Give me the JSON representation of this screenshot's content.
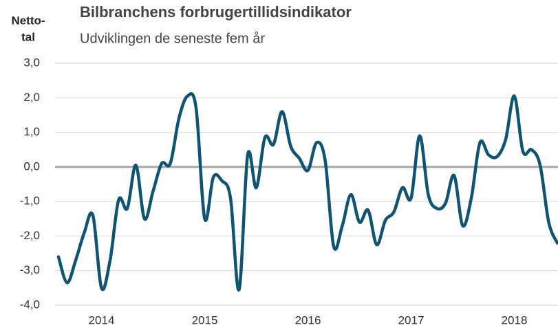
{
  "chart_data": {
    "type": "line",
    "title": "Bilbranchens forbrugertillidsindikator",
    "subtitle": "Udviklingen de seneste fem år",
    "ylabel": [
      "Netto-",
      "tal"
    ],
    "categories": [
      null,
      null,
      null,
      null,
      null,
      "2014",
      null,
      null,
      null,
      null,
      null,
      null,
      null,
      null,
      null,
      null,
      null,
      "2015",
      null,
      null,
      null,
      null,
      null,
      null,
      null,
      null,
      null,
      null,
      null,
      "2016",
      null,
      null,
      null,
      null,
      null,
      null,
      null,
      null,
      null,
      null,
      null,
      "2017",
      null,
      null,
      null,
      null,
      null,
      null,
      null,
      null,
      null,
      null,
      null,
      "2018",
      null,
      null,
      null,
      null,
      null
    ],
    "series": [
      {
        "color": "#0f5573",
        "values": [
          -2.6,
          -3.35,
          -2.7,
          -1.9,
          -1.4,
          -3.5,
          -2.7,
          -0.95,
          -1.2,
          0.05,
          -1.5,
          -0.7,
          0.1,
          0.1,
          1.4,
          2.05,
          1.7,
          -1.5,
          -0.3,
          -0.4,
          -0.9,
          -3.55,
          0.35,
          -0.6,
          0.85,
          0.65,
          1.6,
          0.6,
          0.25,
          -0.1,
          0.7,
          0.2,
          -2.3,
          -1.7,
          -0.8,
          -1.6,
          -1.25,
          -2.25,
          -1.55,
          -1.3,
          -0.6,
          -0.9,
          0.9,
          -0.8,
          -1.2,
          -1.05,
          -0.25,
          -1.7,
          -0.9,
          0.7,
          0.35,
          0.3,
          0.8,
          2.05,
          0.45,
          0.5,
          0.05,
          -1.6,
          -2.2
        ]
      }
    ],
    "ylim": [
      -4,
      3
    ],
    "yticks": [
      {
        "value": -4,
        "label": "-4,0"
      },
      {
        "value": -3,
        "label": "-3,0"
      },
      {
        "value": -2,
        "label": "-2,0"
      },
      {
        "value": -1,
        "label": "-1,0"
      },
      {
        "value": 0,
        "label": "0,0"
      },
      {
        "value": 1,
        "label": "1,0"
      },
      {
        "value": 2,
        "label": "2,0"
      },
      {
        "value": 3,
        "label": "3,0"
      }
    ],
    "grid": true
  }
}
